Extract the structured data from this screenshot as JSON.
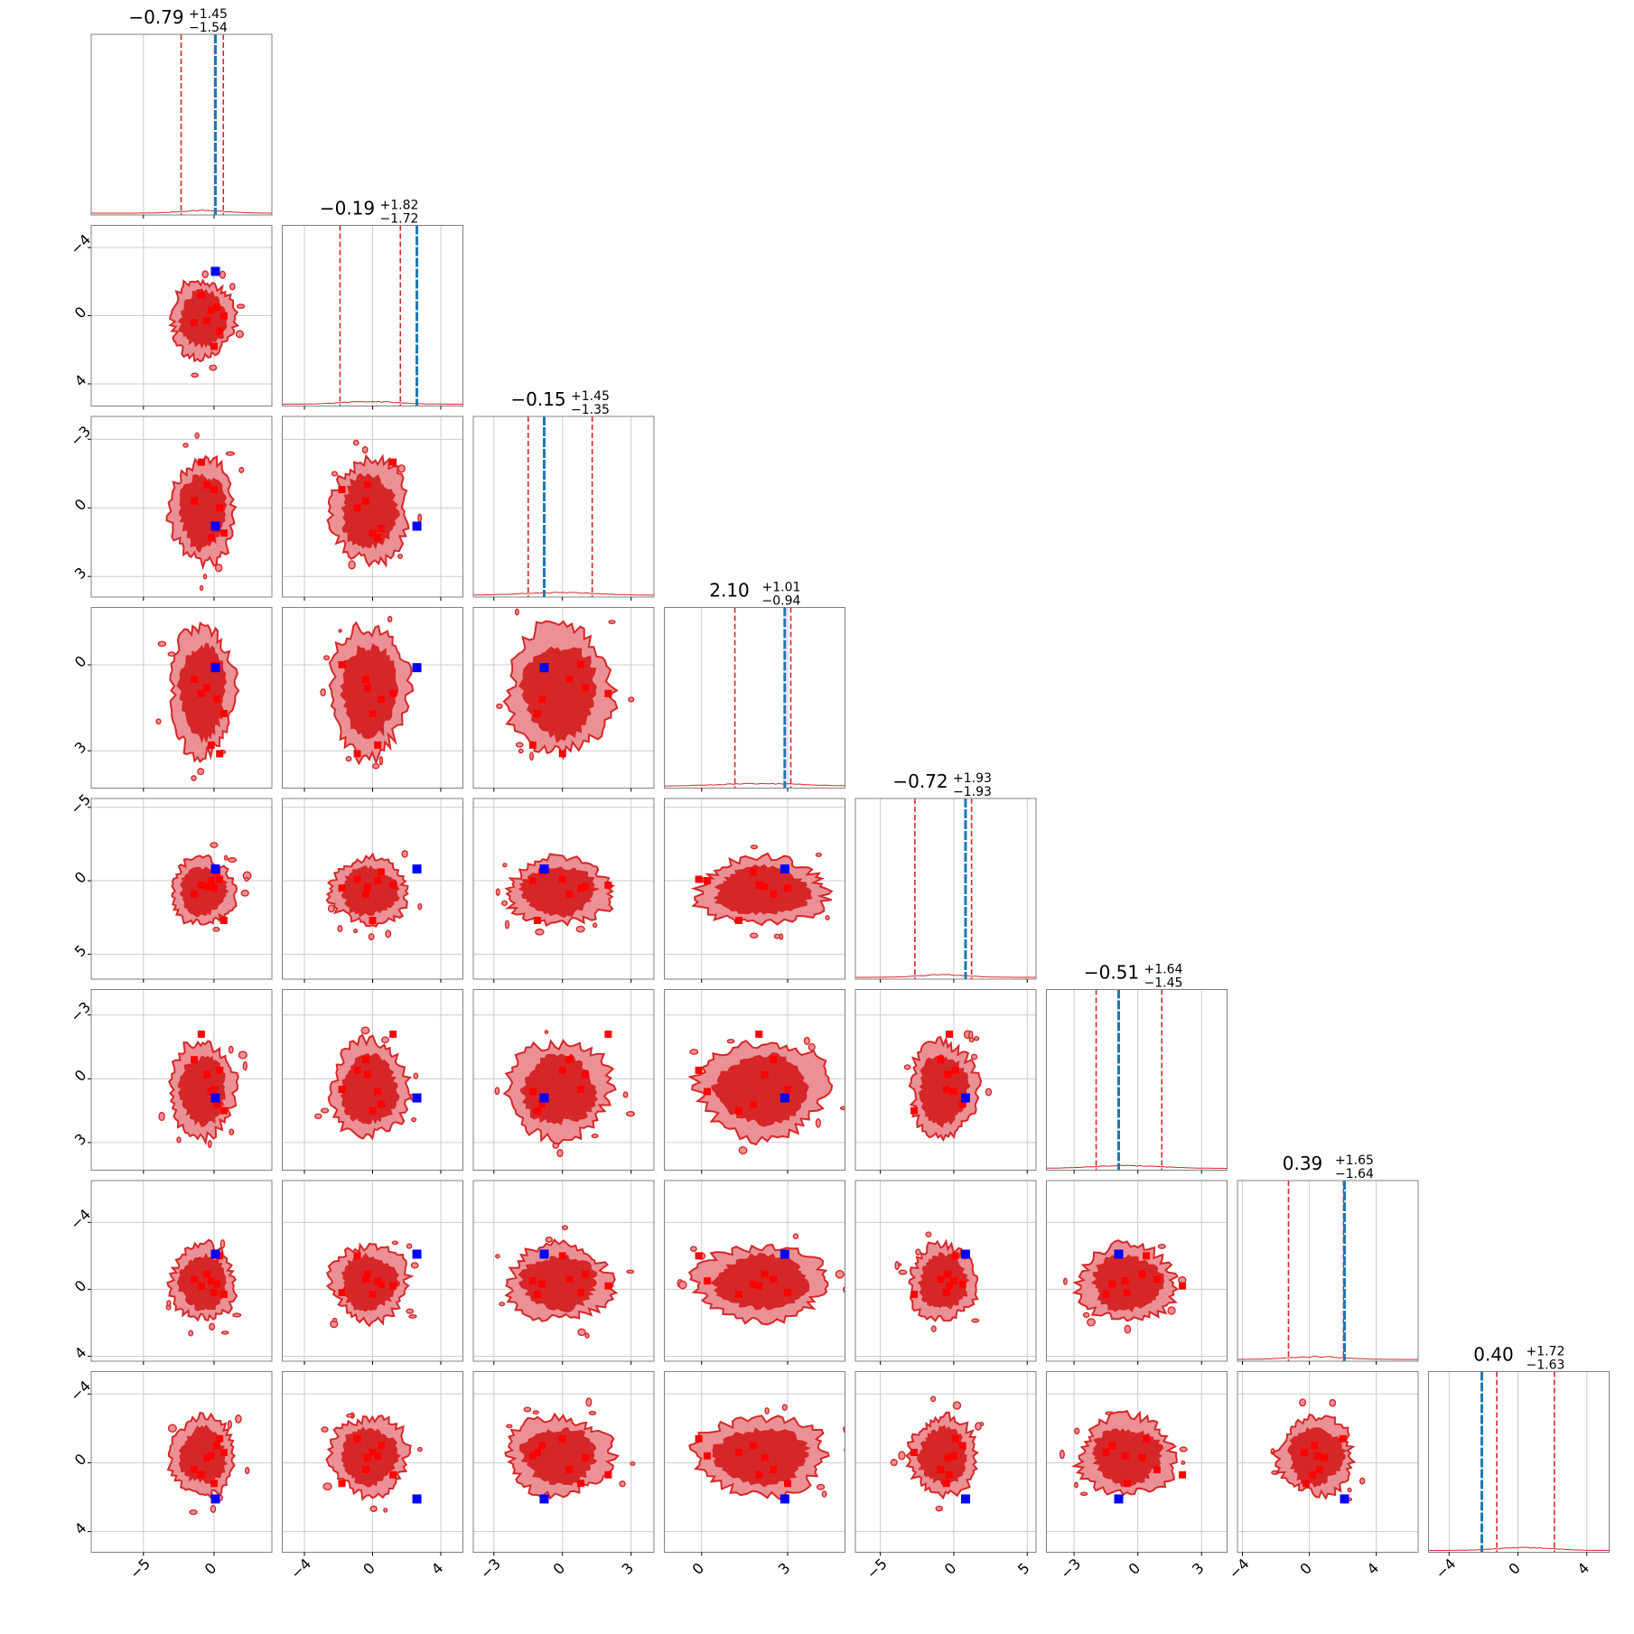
{
  "chart_data": {
    "type": "scatter",
    "subtype": "corner-plot",
    "n_params": 8,
    "colors": {
      "contour_dark": "#d62728",
      "contour_light": "#eb9196",
      "contour_line": "#d62728",
      "quantile_line": "#d62728",
      "truth_line": "#1f77b4",
      "truth_marker": "#0000ff",
      "sample_marker": "#ff0000",
      "grid": "#cccccc"
    },
    "axis_ranges": [
      [
        -8.7,
        4.1
      ],
      [
        -5.3,
        5.3
      ],
      [
        -3.9,
        4.0
      ],
      [
        -1.3,
        5.0
      ],
      [
        -6.7,
        5.6
      ],
      [
        -4.3,
        4.2
      ],
      [
        -4.3,
        6.5
      ],
      [
        -5.2,
        5.3
      ]
    ],
    "tick_values": [
      [
        -5,
        0
      ],
      [
        -4,
        0,
        4
      ],
      [
        -3,
        0,
        3
      ],
      [
        0,
        3
      ],
      [
        -5,
        0,
        5
      ],
      [
        -3,
        0,
        3
      ],
      [
        -4,
        0,
        4
      ],
      [
        -4,
        0,
        4
      ]
    ],
    "tick_labels": [
      [
        "−5",
        "0"
      ],
      [
        "−4",
        "0",
        "4"
      ],
      [
        "−3",
        "0",
        "3"
      ],
      [
        "0",
        "3"
      ],
      [
        "−5",
        "0",
        "5"
      ],
      [
        "−3",
        "0",
        "3"
      ],
      [
        "−4",
        "0",
        "4"
      ],
      [
        "−4",
        "0",
        "4"
      ]
    ],
    "y_tick_labels": [
      [],
      [
        "4",
        "0",
        "−4"
      ],
      [
        "3",
        "0",
        "−3"
      ],
      [
        "3",
        "0"
      ],
      [
        "5",
        "0",
        "−5"
      ],
      [
        "3",
        "0",
        "−3"
      ],
      [
        "4",
        "0",
        "−4"
      ],
      [
        "4",
        "0",
        "−4"
      ]
    ],
    "titles": [
      {
        "median": "−0.79",
        "plus": "+1.45",
        "minus": "−1.54"
      },
      {
        "median": "−0.19",
        "plus": "+1.82",
        "minus": "−1.72"
      },
      {
        "median": "−0.15",
        "plus": "+1.45",
        "minus": "−1.35"
      },
      {
        "median": "2.10",
        "plus": "+1.01",
        "minus": "−0.94"
      },
      {
        "median": "−0.72",
        "plus": "+1.93",
        "minus": "−1.93"
      },
      {
        "median": "−0.51",
        "plus": "+1.64",
        "minus": "−1.45"
      },
      {
        "median": "0.39",
        "plus": "+1.65",
        "minus": "−1.64"
      },
      {
        "median": "0.40",
        "plus": "+1.72",
        "minus": "−1.63"
      }
    ],
    "medians": [
      -0.79,
      -0.19,
      -0.15,
      2.1,
      -0.72,
      -0.51,
      0.39,
      0.4
    ],
    "quantiles": [
      [
        -2.33,
        0.66
      ],
      [
        -1.91,
        1.63
      ],
      [
        -1.5,
        1.3
      ],
      [
        1.16,
        3.11
      ],
      [
        -2.65,
        1.21
      ],
      [
        -1.96,
        1.13
      ],
      [
        -1.25,
        2.04
      ],
      [
        -1.23,
        2.12
      ]
    ],
    "truths": [
      0.1,
      2.6,
      -0.8,
      2.9,
      0.8,
      -0.9,
      2.1,
      -2.1
    ],
    "sample_points": [
      [
        -0.5,
        -0.3,
        1.0,
        2.2,
        -0.4,
        0.2,
        0.9,
        0.3
      ],
      [
        0.2,
        0.5,
        -0.9,
        1.8,
        0.6,
        -1.2,
        0.3,
        1.0
      ],
      [
        -1.4,
        -0.4,
        0.3,
        2.5,
        -0.9,
        0.9,
        0.6,
        -0.4
      ],
      [
        0.7,
        0.0,
        -1.1,
        1.3,
        -2.7,
        -1.5,
        -0.3,
        0.6
      ],
      [
        -0.9,
        1.2,
        2.0,
        2.0,
        -0.3,
        2.1,
        0.2,
        -0.7
      ],
      [
        0.4,
        -0.9,
        0.0,
        -0.1,
        0.1,
        0.4,
        2.0,
        1.4
      ],
      [
        0.0,
        -1.8,
        0.8,
        3.0,
        -0.5,
        -0.5,
        -0.2,
        -1.2
      ],
      [
        -0.2,
        0.3,
        -1.3,
        0.2,
        0.0,
        -0.6,
        0.5,
        0.4
      ]
    ],
    "x_label_text": [],
    "grid": true,
    "contour_levels": [
      "1-sigma",
      "2-sigma"
    ],
    "seed": 7
  }
}
